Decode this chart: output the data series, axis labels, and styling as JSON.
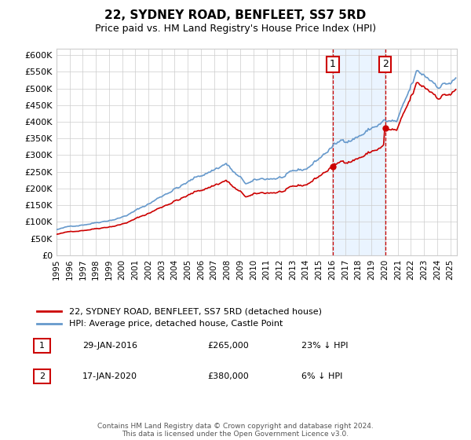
{
  "title": "22, SYDNEY ROAD, BENFLEET, SS7 5RD",
  "subtitle": "Price paid vs. HM Land Registry's House Price Index (HPI)",
  "legend_line1": "22, SYDNEY ROAD, BENFLEET, SS7 5RD (detached house)",
  "legend_line2": "HPI: Average price, detached house, Castle Point",
  "annotation1_label": "1",
  "annotation1_date": "29-JAN-2016",
  "annotation1_price": 265000,
  "annotation1_hpi": "23% ↓ HPI",
  "annotation2_label": "2",
  "annotation2_date": "17-JAN-2020",
  "annotation2_price": 380000,
  "annotation2_hpi": "6% ↓ HPI",
  "footer": "Contains HM Land Registry data © Crown copyright and database right 2024.\nThis data is licensed under the Open Government Licence v3.0.",
  "hpi_color": "#6699cc",
  "price_color": "#cc0000",
  "annotation_box_color": "#cc0000",
  "shaded_color": "#ddeeff",
  "ylim": [
    0,
    620000
  ],
  "yticks": [
    0,
    50000,
    100000,
    150000,
    200000,
    250000,
    300000,
    350000,
    400000,
    450000,
    500000,
    550000,
    600000
  ]
}
